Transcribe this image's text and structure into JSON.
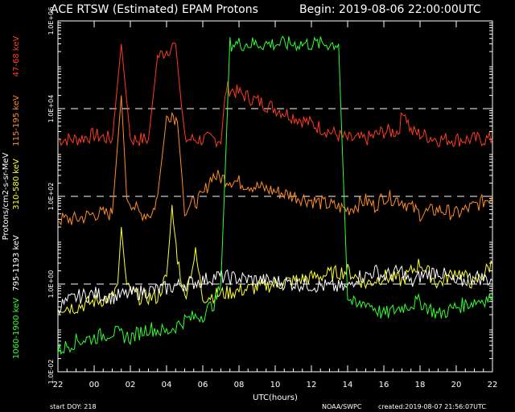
{
  "colors": {
    "background": "#000000",
    "axes": "#ffffff",
    "grid": "#ffffff",
    "ch1": "#ff3c1e",
    "ch2": "#ff8c28",
    "ch3": "#ffff32",
    "ch4": "#ffffff",
    "ch5": "#32ff32"
  },
  "chart_data": {
    "type": "line",
    "title": "ACE RTSW (Estimated) EPAM Protons",
    "begin": "Begin: 2019-08-06 22:00:00UTC",
    "xlabel": "UTC(hours)",
    "ylabel": "Protons/cm2-s-sr-MeV",
    "yscale": "log",
    "ylim": [
      0.01,
      1000000
    ],
    "xlim": [
      0,
      24
    ],
    "x_ticks": [
      "22",
      "00",
      "02",
      "04",
      "06",
      "08",
      "10",
      "12",
      "14",
      "16",
      "18",
      "20",
      "22"
    ],
    "y_ticks": [
      "1.0E+06",
      "1.0E+04",
      "1.0E+02",
      "1.0E+00",
      "1.0E-02"
    ],
    "grid_dashed_at": [
      10000,
      100,
      1
    ],
    "footer_left": "start DOY:  218",
    "footer_mid": "NOAA/SWPC",
    "footer_right": "created:2019-08-07 21:56:07UTC",
    "series": [
      {
        "name": "47-68 keV",
        "color": "#ff3c1e",
        "points": [
          [
            0,
            2000
          ],
          [
            1,
            2000
          ],
          [
            2,
            2500
          ],
          [
            3,
            2000
          ],
          [
            3.5,
            300000
          ],
          [
            4,
            2000
          ],
          [
            5,
            2000
          ],
          [
            5.5,
            150000
          ],
          [
            6.5,
            300000
          ],
          [
            7,
            2000
          ],
          [
            8,
            2000
          ],
          [
            9,
            2000
          ],
          [
            9.3,
            30000
          ],
          [
            16,
            2000
          ],
          [
            17,
            2000
          ],
          [
            18,
            3000
          ],
          [
            18.8,
            3000
          ],
          [
            19.1,
            10000
          ],
          [
            19.5,
            3000
          ],
          [
            21,
            2000
          ],
          [
            22,
            2000
          ],
          [
            23,
            2000
          ],
          [
            24,
            2000
          ]
        ]
      },
      {
        "name": "115-195 keV",
        "color": "#ff8c28",
        "points": [
          [
            0,
            30
          ],
          [
            1,
            30
          ],
          [
            2,
            40
          ],
          [
            3,
            40
          ],
          [
            3.5,
            20000
          ],
          [
            3.8,
            100
          ],
          [
            4.5,
            40
          ],
          [
            5.2,
            40
          ],
          [
            5.5,
            100
          ],
          [
            6,
            6000
          ],
          [
            6.3,
            8000
          ],
          [
            6.6,
            5000
          ],
          [
            7,
            50
          ],
          [
            8,
            100
          ],
          [
            8.5,
            300
          ],
          [
            16,
            50
          ],
          [
            17,
            80
          ],
          [
            17.5,
            60
          ],
          [
            18,
            100
          ],
          [
            19,
            80
          ],
          [
            20,
            40
          ],
          [
            21,
            50
          ],
          [
            22,
            40
          ],
          [
            23,
            60
          ],
          [
            24,
            100
          ]
        ]
      },
      {
        "name": "310-580 keV",
        "color": "#ffff32",
        "points": [
          [
            0,
            0.3
          ],
          [
            1,
            0.3
          ],
          [
            2,
            0.4
          ],
          [
            3,
            0.5
          ],
          [
            3.3,
            1.0
          ],
          [
            3.5,
            20
          ],
          [
            3.8,
            0.8
          ],
          [
            4.5,
            0.5
          ],
          [
            5.5,
            0.5
          ],
          [
            6,
            1.5
          ],
          [
            6.3,
            50
          ],
          [
            6.6,
            4
          ],
          [
            7,
            0.5
          ],
          [
            7.6,
            5
          ],
          [
            8,
            0.5
          ],
          [
            16,
            2
          ],
          [
            17,
            1
          ],
          [
            18,
            1.5
          ],
          [
            19,
            1.2
          ],
          [
            20,
            3
          ],
          [
            21,
            1
          ],
          [
            22,
            2
          ],
          [
            23,
            1
          ],
          [
            24,
            3
          ]
        ]
      },
      {
        "name": "795-1193 keV",
        "color": "#ffffff",
        "points": [
          [
            0,
            0.3
          ],
          [
            1,
            0.5
          ],
          [
            2,
            0.6
          ],
          [
            3,
            0.5
          ],
          [
            4,
            0.6
          ],
          [
            5,
            0.7
          ],
          [
            6,
            0.8
          ],
          [
            7,
            1.0
          ],
          [
            8,
            1.2
          ],
          [
            8.7,
            1.5
          ],
          [
            16,
            0.8
          ],
          [
            16.5,
            1.5
          ],
          [
            17,
            1.5
          ],
          [
            17.5,
            2
          ],
          [
            18,
            1.5
          ],
          [
            19,
            2
          ],
          [
            19.5,
            1
          ],
          [
            20,
            1.5
          ],
          [
            21,
            2
          ],
          [
            22,
            1
          ],
          [
            23,
            1.5
          ],
          [
            24,
            1.2
          ]
        ]
      },
      {
        "name": "1060-1900 keV",
        "color": "#32ff32",
        "points": [
          [
            0,
            0.03
          ],
          [
            1,
            0.05
          ],
          [
            2,
            0.06
          ],
          [
            3,
            0.08
          ],
          [
            4,
            0.06
          ],
          [
            5,
            0.1
          ],
          [
            6,
            0.08
          ],
          [
            7,
            0.15
          ],
          [
            8,
            0.2
          ],
          [
            8.7,
            0.4
          ],
          [
            9,
            1.0
          ],
          [
            9.5,
            300000
          ],
          [
            15.5,
            300000
          ],
          [
            16,
            0.5
          ],
          [
            16.5,
            0.3
          ],
          [
            17,
            0.4
          ],
          [
            18,
            0.2
          ],
          [
            19,
            0.3
          ],
          [
            20,
            0.4
          ],
          [
            21,
            0.2
          ],
          [
            22,
            0.3
          ],
          [
            23,
            0.4
          ],
          [
            24,
            0.5
          ]
        ]
      }
    ]
  }
}
